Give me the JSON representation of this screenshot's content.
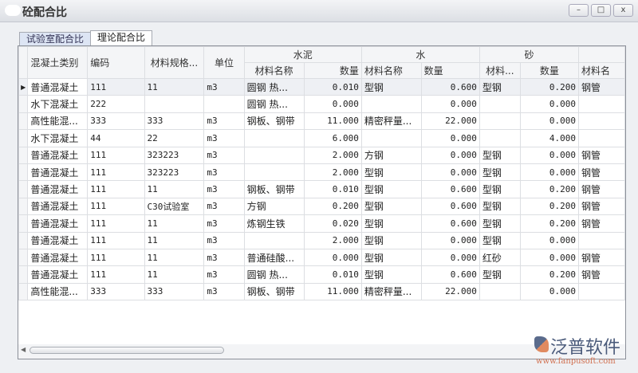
{
  "window": {
    "title": "砼配合比",
    "minimize": "–",
    "maximize": "□",
    "close": "x"
  },
  "tabs": [
    {
      "label": "试验室配合比",
      "active": false
    },
    {
      "label": "理论配合比",
      "active": true
    }
  ],
  "grid": {
    "headers": {
      "type": "混凝土类别",
      "code": "编码",
      "spec": "材料规格...",
      "unit": "单位",
      "groups": [
        {
          "label": "水泥",
          "sub": [
            "材料名称",
            "数量"
          ]
        },
        {
          "label": "水",
          "sub": [
            "材料名称",
            "数量"
          ]
        },
        {
          "label": "砂",
          "sub": [
            "材料...",
            "数量"
          ]
        },
        {
          "label": "",
          "sub": [
            "材料名"
          ]
        }
      ]
    },
    "rows": [
      [
        "普通混凝土",
        "111",
        "11",
        "m3",
        "圆钢 热...",
        "0.010",
        "型钢",
        "0.600",
        "型钢",
        "0.200",
        "钢管"
      ],
      [
        "水下混凝土",
        "222",
        "",
        "",
        "圆钢 热...",
        "0.000",
        "",
        "0.000",
        "",
        "0.000",
        ""
      ],
      [
        "高性能混...",
        "333",
        "333",
        "m3",
        "钢板、钢带",
        "11.000",
        "精密秤量...",
        "22.000",
        "",
        "0.000",
        ""
      ],
      [
        "水下混凝土",
        "44",
        "22",
        "m3",
        "",
        "6.000",
        "",
        "0.000",
        "",
        "4.000",
        ""
      ],
      [
        "普通混凝土",
        "111",
        "323223",
        "m3",
        "",
        "2.000",
        "方钢",
        "0.000",
        "型钢",
        "0.000",
        "钢管"
      ],
      [
        "普通混凝土",
        "111",
        "323223",
        "m3",
        "",
        "2.000",
        "型钢",
        "0.000",
        "型钢",
        "0.000",
        "钢管"
      ],
      [
        "普通混凝土",
        "111",
        "11",
        "m3",
        "钢板、钢带",
        "0.010",
        "型钢",
        "0.600",
        "型钢",
        "0.200",
        "钢管"
      ],
      [
        "普通混凝土",
        "111",
        "C30试验室",
        "m3",
        "方钢",
        "0.200",
        "型钢",
        "0.600",
        "型钢",
        "0.200",
        "钢管"
      ],
      [
        "普通混凝土",
        "111",
        "11",
        "m3",
        "炼钢生铁",
        "0.020",
        "型钢",
        "0.600",
        "型钢",
        "0.200",
        "钢管"
      ],
      [
        "普通混凝土",
        "111",
        "11",
        "m3",
        "",
        "2.000",
        "型钢",
        "0.000",
        "型钢",
        "0.000",
        ""
      ],
      [
        "普通混凝土",
        "111",
        "11",
        "m3",
        "普通硅酸...",
        "0.000",
        "型钢",
        "0.000",
        "红砂",
        "0.000",
        "钢管"
      ],
      [
        "普通混凝土",
        "111",
        "11",
        "m3",
        "圆钢 热...",
        "0.010",
        "型钢",
        "0.600",
        "型钢",
        "0.200",
        "钢管"
      ],
      [
        "高性能混...",
        "333",
        "333",
        "m3",
        "钢板、钢带",
        "11.000",
        "精密秤量...",
        "22.000",
        "",
        "0.000",
        ""
      ]
    ],
    "selected_row": 0
  },
  "brand": {
    "name": "泛普软件",
    "url": "www.fanpusoft.com"
  }
}
